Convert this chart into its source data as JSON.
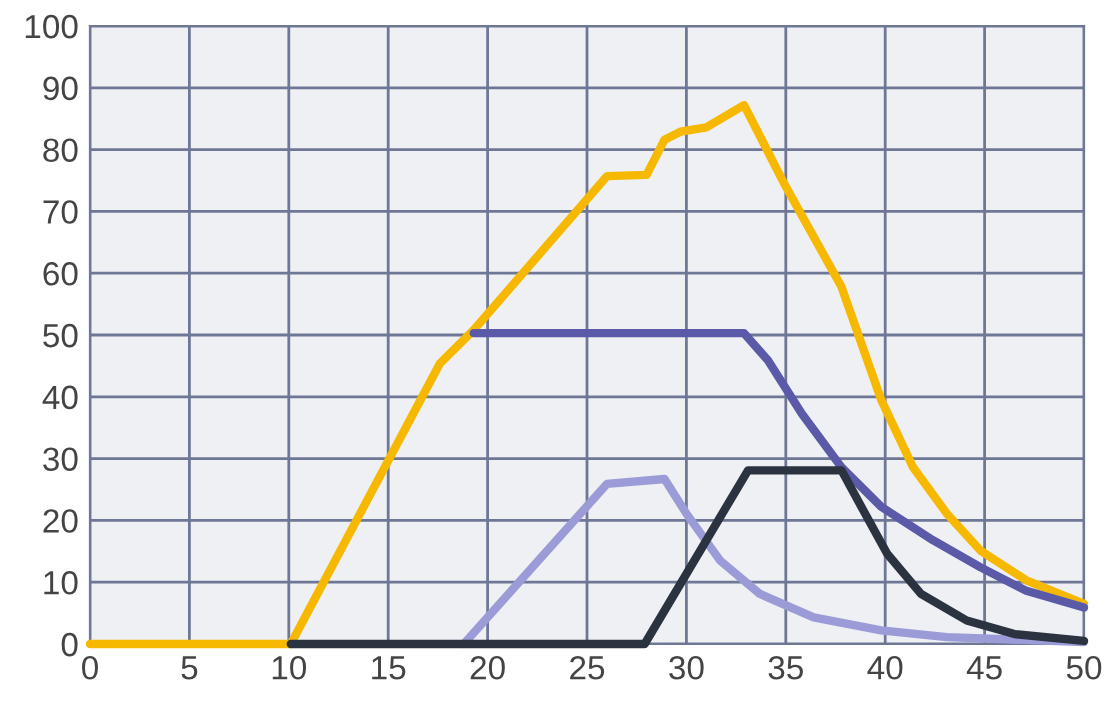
{
  "chart_data": {
    "type": "line",
    "xlim": [
      0,
      50
    ],
    "ylim": [
      0,
      100
    ],
    "xticks": [
      0,
      5,
      10,
      15,
      20,
      25,
      30,
      35,
      40,
      45,
      50
    ],
    "yticks": [
      0,
      10,
      20,
      30,
      40,
      50,
      60,
      70,
      80,
      90,
      100
    ],
    "grid": true,
    "marker": "none",
    "line_style": "solid",
    "series": [
      {
        "color": "#f7b800",
        "x": [
          0,
          10.1,
          17.6,
          19.3,
          26,
          28,
          28.9,
          29.7,
          31,
          32.9,
          34.9,
          37.8,
          39.8,
          41.4,
          43.1,
          44.8,
          47.1,
          50
        ],
        "values": [
          0,
          0,
          45.4,
          50.8,
          75.7,
          75.9,
          81.6,
          82.9,
          83.6,
          87.2,
          74.6,
          57.8,
          39.5,
          28.6,
          21.1,
          15.1,
          10.3,
          6.5
        ]
      },
      {
        "color": "#5b5aa8",
        "x": [
          19.3,
          32.9,
          34.1,
          35.8,
          37.8,
          39.8,
          42.4,
          44.8,
          47.1,
          50
        ],
        "values": [
          50.3,
          50.3,
          45.9,
          37.3,
          28.6,
          22.2,
          16.8,
          12.4,
          8.6,
          5.9
        ]
      },
      {
        "color": "#9b9bd8",
        "x": [
          18.8,
          26,
          28.9,
          30,
          31.7,
          33.7,
          36.4,
          39.8,
          43.1,
          50
        ],
        "values": [
          0,
          25.9,
          26.7,
          21.1,
          13.5,
          8.1,
          4.3,
          2.2,
          1.1,
          0.3
        ]
      },
      {
        "color": "#2b3240",
        "x": [
          10.1,
          27.9,
          33.1,
          37.8,
          38.8,
          40.1,
          41.8,
          44.1,
          46.5,
          50
        ],
        "values": [
          0,
          0,
          28.1,
          28.1,
          22.2,
          14.6,
          8.1,
          3.8,
          1.6,
          0.5
        ]
      }
    ]
  }
}
